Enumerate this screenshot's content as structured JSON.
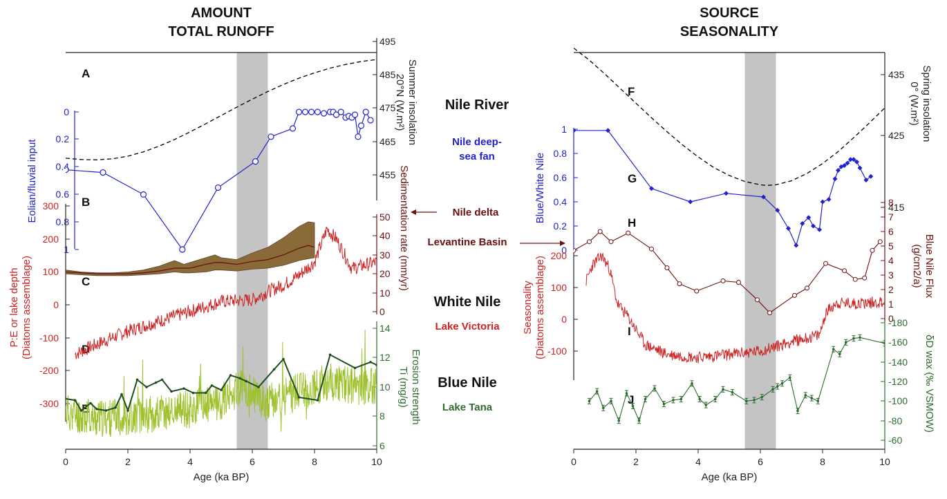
{
  "headers": {
    "left_line1": "AMOUNT",
    "left_line2": "TOTAL RUNOFF",
    "right_line1": "SOURCE",
    "right_line2": "SEASONALITY"
  },
  "middle": {
    "nile_river": "Nile River",
    "nile_fan_line1": "Nile deep-",
    "nile_fan_line2": "sea fan",
    "nile_delta": "Nile delta",
    "levantine": "Levantine Basin",
    "white_nile": "White Nile",
    "lake_victoria": "Lake Victoria",
    "blue_nile": "Blue Nile",
    "lake_tana": "Lake Tana"
  },
  "colors": {
    "insolation": "#000000",
    "blue": "#2222cc",
    "brown": "#6b1010",
    "band": "#8b6a3a",
    "red": "#cc2222",
    "ti": "#9dc22e",
    "erosion": "#1f4d1f",
    "green": "#2e6b2e",
    "shade": "#c4c4c4"
  },
  "chart_data": [
    {
      "type": "line",
      "title": "AMOUNT TOTAL RUNOFF",
      "xlabel": "Age (ka BP)",
      "xlim": [
        0,
        10
      ],
      "xticks": [
        "0",
        "2",
        "4",
        "6",
        "8",
        "10"
      ],
      "shaded_interval": [
        5.5,
        6.5
      ],
      "panel_labels": [
        "A",
        "B",
        "C",
        "D",
        "E"
      ],
      "axes": {
        "insolation": {
          "label_line1": "Summer insolation",
          "label_line2": "20°N (W.m²)",
          "ticks": [
            "495",
            "485",
            "475",
            "465",
            "455"
          ],
          "ylim": [
            450,
            495
          ]
        },
        "eolian": {
          "label": "Eolian/fluvial input",
          "ticks": [
            "0",
            "0.2",
            "0.4",
            "0.6",
            "0.8",
            "1"
          ],
          "ylim": [
            0,
            1
          ],
          "reversed": true
        },
        "sedimentation": {
          "label": "Sedimentation rate (mm/yr)",
          "ticks": [
            "50",
            "40",
            "30",
            "20",
            "10",
            "0"
          ],
          "ylim": [
            0,
            50
          ]
        },
        "lake_depth": {
          "label_line1": "P:E or lake depth",
          "label_line2": "(Diatoms assemblage)",
          "ticks": [
            "300",
            "200",
            "100",
            "0",
            "-100",
            "-200",
            "-300"
          ],
          "ylim": [
            -300,
            300
          ]
        },
        "ti": {
          "label_line1": "Erosion strength",
          "label_line2": "Ti (mg/g)",
          "ticks": [
            "14",
            "12",
            "10",
            "8",
            "6"
          ],
          "ylim": [
            6,
            14
          ]
        }
      },
      "series": [
        {
          "name": "Summer insolation 20°N",
          "style": "dashed",
          "x": [
            0,
            0.5,
            1,
            1.5,
            2,
            2.5,
            3,
            3.5,
            4,
            4.5,
            5,
            5.5,
            6,
            6.5,
            7,
            7.5,
            8,
            8.5,
            9,
            9.5,
            10
          ],
          "y": [
            460,
            459.6,
            459.5,
            459.8,
            460.6,
            461.9,
            463.6,
            465.6,
            467.9,
            470.3,
            472.8,
            475.3,
            477.7,
            480,
            482.1,
            484,
            485.6,
            487,
            488.1,
            489,
            489.6
          ]
        },
        {
          "name": "Eolian/fluvial input",
          "x": [
            0,
            1.2,
            2.5,
            3.75,
            4.9,
            6.1,
            6.6,
            7.3,
            7.5,
            7.7,
            7.9,
            8.1,
            8.3,
            8.5,
            8.6,
            8.7,
            8.85,
            9.0,
            9.1,
            9.2,
            9.3,
            9.4,
            9.5,
            9.65,
            9.8
          ],
          "y": [
            0.42,
            0.44,
            0.6,
            1.0,
            0.55,
            0.36,
            0.18,
            0.12,
            0.0,
            0.0,
            0.0,
            0.0,
            0.01,
            0.0,
            0.0,
            0.02,
            0.0,
            0.04,
            0.03,
            0.04,
            0.02,
            0.18,
            0.1,
            0.0,
            0.06
          ]
        },
        {
          "name": "Sedimentation rate",
          "style": "band",
          "x": [
            0,
            0.5,
            1,
            1.5,
            2,
            2.5,
            3,
            3.5,
            3.8,
            4,
            4.5,
            4.8,
            5,
            5.5,
            6,
            6.5,
            7,
            7.5,
            7.8,
            8
          ],
          "y": [
            21,
            20.5,
            20,
            20,
            20,
            20.5,
            21.5,
            23,
            23,
            23,
            25,
            26,
            26,
            25,
            26.5,
            27.5,
            30,
            33.5,
            35,
            34
          ],
          "y_low": [
            20,
            19.5,
            19,
            19,
            19,
            19.5,
            20,
            21,
            20.5,
            20.5,
            21,
            22,
            22,
            21.5,
            22.5,
            23,
            24.5,
            27,
            28,
            28.5
          ],
          "y_high": [
            22,
            21,
            20.5,
            20.5,
            21,
            22,
            24,
            27,
            25,
            26,
            28.5,
            30,
            28.5,
            27.5,
            31,
            34,
            39,
            45,
            47.5,
            47
          ]
        },
        {
          "name": "Lake Victoria diatoms",
          "x_range": [
            0.3,
            10
          ],
          "anchors": [
            [
              0.3,
              -150
            ],
            [
              1.0,
              -120
            ],
            [
              2,
              -80
            ],
            [
              3,
              -50
            ],
            [
              4,
              -20
            ],
            [
              5,
              10
            ],
            [
              6,
              15
            ],
            [
              6.5,
              40
            ],
            [
              7,
              60
            ],
            [
              7.5,
              90
            ],
            [
              8.0,
              130
            ],
            [
              8.4,
              230
            ],
            [
              8.7,
              200
            ],
            [
              9.2,
              110
            ],
            [
              10,
              130
            ]
          ]
        },
        {
          "name": "Lake Tana Ti",
          "x_range": [
            0,
            10
          ],
          "anchors": [
            [
              0,
              8.3
            ],
            [
              1,
              7.8
            ],
            [
              2,
              8.0
            ],
            [
              3,
              8.2
            ],
            [
              4,
              8.5
            ],
            [
              5,
              9.0
            ],
            [
              5.6,
              10.0
            ],
            [
              5.9,
              9.6
            ],
            [
              6.5,
              8.9
            ],
            [
              7.5,
              9.7
            ],
            [
              8.5,
              10.4
            ],
            [
              9.2,
              10.1
            ],
            [
              10,
              10.0
            ]
          ]
        },
        {
          "name": "Erosion strength",
          "x": [
            0,
            0.3,
            0.5,
            0.8,
            1.0,
            1.3,
            1.6,
            1.8,
            2.0,
            2.3,
            2.6,
            2.9,
            3.1,
            3.4,
            3.8,
            4.1,
            4.5,
            4.7,
            5.0,
            5.3,
            5.6,
            5.8,
            6.2,
            6.7,
            7.0,
            7.5,
            8.1,
            8.5,
            9.3,
            9.8,
            10.0
          ],
          "y": [
            9.2,
            9.1,
            8.4,
            8.9,
            8.5,
            8.4,
            8.6,
            9.5,
            8.4,
            10.5,
            10.0,
            10.3,
            10.5,
            9.7,
            9.9,
            9.6,
            9.6,
            10.1,
            9.8,
            10.8,
            10.6,
            10.4,
            10.0,
            11.2,
            11.9,
            9.3,
            9.1,
            12.2,
            11.3,
            11.7,
            11.5
          ]
        }
      ]
    },
    {
      "type": "line",
      "title": "SOURCE SEASONALITY",
      "xlabel": "Age (ka BP)",
      "xlim": [
        0,
        10
      ],
      "xticks": [
        "0",
        "2",
        "4",
        "6",
        "8",
        "10"
      ],
      "shaded_interval": [
        5.5,
        6.5
      ],
      "panel_labels": [
        "F",
        "G",
        "H",
        "I",
        "J"
      ],
      "axes": {
        "insolation": {
          "label_line1": "Spring insolation",
          "label_line2": "0° (W.m²)",
          "ticks": [
            "435",
            "425",
            "415"
          ],
          "ylim": [
            410,
            440
          ]
        },
        "blue_white": {
          "label": "Blue/White Nile",
          "ticks": [
            "1",
            "0.8",
            "0.6",
            "0.4",
            "0.2",
            "0"
          ],
          "ylim": [
            0,
            1
          ]
        },
        "flux": {
          "label_line1": "Blue Nile Flux",
          "label_line2": "(g/cm2/a)",
          "ticks": [
            "8",
            "7",
            "6",
            "5",
            "4",
            "3",
            "2",
            "1",
            "0"
          ],
          "ylim": [
            0,
            8
          ]
        },
        "seasonality": {
          "label_line1": "Seasonality",
          "label_line2": "(Diatoms assemblage)",
          "ticks": [
            "200",
            "100",
            "0",
            "-100"
          ],
          "ylim": [
            -150,
            250
          ]
        },
        "dD": {
          "label": "δD wax (‰ VSMOW)",
          "ticks": [
            "-180",
            "-160",
            "-140",
            "-120",
            "-100",
            "-80",
            "-60"
          ],
          "ylim": [
            -180,
            -60
          ],
          "reversed": true
        }
      },
      "series": [
        {
          "name": "Spring insolation 0°",
          "style": "dashed",
          "x": [
            0,
            0.5,
            1,
            1.5,
            2,
            2.5,
            3,
            3.5,
            4,
            4.5,
            5,
            5.5,
            6,
            6.2,
            6.5,
            7,
            7.5,
            8,
            8.5,
            9,
            9.5,
            10
          ],
          "y": [
            439,
            437.2,
            435.1,
            432.9,
            430.7,
            428.5,
            426.4,
            424.4,
            422.6,
            421,
            419.8,
            418.9,
            418.4,
            418.3,
            418.4,
            419,
            420.1,
            421.6,
            423.4,
            425.5,
            427.7,
            430
          ]
        },
        {
          "name": "Blue/White Nile",
          "x": [
            0,
            1.1,
            2.5,
            3.75,
            4.9,
            6.1,
            6.55,
            6.9,
            7.15,
            7.35,
            7.55,
            7.7,
            7.9,
            8.0,
            8.2,
            8.4,
            8.5,
            8.6,
            8.7,
            8.8,
            8.9,
            9.0,
            9.1,
            9.2,
            9.4,
            9.55
          ],
          "y": [
            0.99,
            0.99,
            0.51,
            0.4,
            0.47,
            0.44,
            0.33,
            0.18,
            0.04,
            0.22,
            0.27,
            0.2,
            0.17,
            0.4,
            0.42,
            0.59,
            0.66,
            0.69,
            0.7,
            0.72,
            0.75,
            0.75,
            0.73,
            0.68,
            0.58,
            0.61
          ]
        },
        {
          "name": "Blue Nile Flux",
          "x": [
            0,
            0.5,
            0.85,
            1.2,
            1.75,
            2.5,
            3.0,
            3.4,
            3.95,
            4.8,
            5.3,
            5.9,
            6.3,
            7.1,
            7.5,
            8.1,
            8.7,
            9.05,
            9.35,
            9.6,
            9.85
          ],
          "y": [
            4.7,
            5.3,
            6.0,
            5.3,
            5.9,
            4.8,
            3.5,
            2.4,
            1.9,
            2.6,
            2.5,
            1.3,
            0.4,
            1.6,
            2.1,
            3.8,
            3.3,
            2.7,
            2.8,
            4.7,
            5.3
          ]
        },
        {
          "name": "Seasonality diatoms",
          "x_range": [
            0.4,
            10
          ],
          "anchors": [
            [
              0.4,
              120
            ],
            [
              0.6,
              170
            ],
            [
              0.9,
              200
            ],
            [
              1.15,
              160
            ],
            [
              1.4,
              50
            ],
            [
              1.8,
              0
            ],
            [
              2.3,
              -80
            ],
            [
              3,
              -110
            ],
            [
              4,
              -120
            ],
            [
              5,
              -110
            ],
            [
              6,
              -100
            ],
            [
              7,
              -70
            ],
            [
              7.9,
              -50
            ],
            [
              8.1,
              20
            ],
            [
              8.4,
              50
            ],
            [
              9,
              50
            ],
            [
              10,
              55
            ]
          ]
        },
        {
          "name": "δD wax",
          "error_bars": true,
          "x": [
            0.5,
            0.75,
            0.95,
            1.2,
            1.45,
            1.7,
            1.9,
            2.1,
            2.3,
            2.6,
            2.9,
            3.2,
            3.45,
            3.8,
            4.05,
            4.25,
            4.55,
            4.8,
            5.1,
            5.55,
            5.8,
            6.05,
            6.4,
            6.55,
            6.7,
            6.95,
            7.2,
            7.45,
            7.65,
            7.85,
            8.35,
            8.55,
            8.75,
            9.0,
            9.2,
            10
          ],
          "y": [
            -100,
            -110,
            -93,
            -100,
            -80,
            -108,
            -95,
            -80,
            -102,
            -113,
            -97,
            -101,
            -102,
            -118,
            -102,
            -96,
            -102,
            -112,
            -109,
            -100,
            -101,
            -104,
            -112,
            -115,
            -118,
            -124,
            -90,
            -106,
            -103,
            -100,
            -153,
            -148,
            -160,
            -164,
            -165,
            -159
          ]
        }
      ]
    }
  ]
}
